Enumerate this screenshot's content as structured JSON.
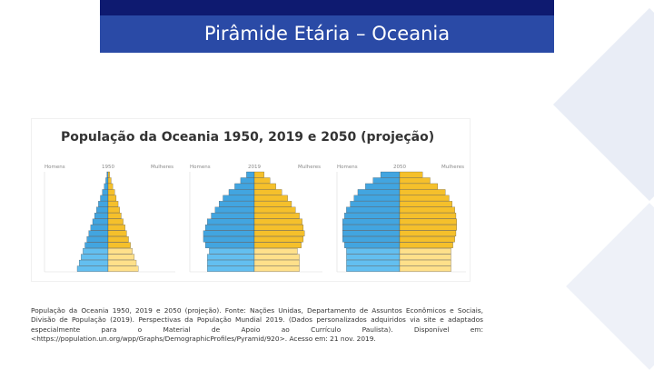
{
  "slide": {
    "title": "Pirâmide Etária – Oceania",
    "caption": "População da Oceania 1950, 2019 e 2050 (projeção). Fonte: Nações Unidas, Departamento de Assuntos Econômicos e Sociais, Divisão de População (2019). Perspectivas da População Mundial 2019. (Dados personalizados adquiridos via site e adaptados especialmente para o Material de Apoio ao Currículo Paulista). Disponível em: <https://population.un.org/wpp/Graphs/DemographicProfiles/Pyramid/920>. Acesso em: 21 nov. 2019.",
    "colors": {
      "accent": "#2a4aa6",
      "accent_dark": "#0e1a70",
      "men": "#42a5e0",
      "women": "#f5c02b"
    }
  },
  "figure": {
    "title": "População da Oceania 1950, 2019 e 2050 (projeção)"
  },
  "chart_data": [
    {
      "type": "bar",
      "orientation": "horizontal-pyramid",
      "year_label": "1950",
      "left_label": "Homens",
      "right_label": "Mulheres",
      "series": [
        {
          "name": "Homens",
          "values": [
            8,
            7.5,
            7,
            6.5,
            6,
            5.5,
            5,
            4.5,
            4,
            3.5,
            3,
            2.5,
            2,
            1.5,
            1,
            0.6,
            0.3
          ]
        },
        {
          "name": "Mulheres",
          "values": [
            7.8,
            7.3,
            6.8,
            6.3,
            5.8,
            5.3,
            4.8,
            4.4,
            3.9,
            3.4,
            3,
            2.6,
            2.1,
            1.7,
            1.2,
            0.8,
            0.4
          ]
        }
      ]
    },
    {
      "type": "bar",
      "orientation": "horizontal-pyramid",
      "year_label": "2019",
      "left_label": "Homens",
      "right_label": "Mulheres",
      "series": [
        {
          "name": "Homens",
          "values": [
            12,
            12,
            12,
            11.5,
            12.5,
            13,
            13,
            12.5,
            12,
            11,
            10,
            9,
            8,
            6.5,
            5,
            3.5,
            2
          ]
        },
        {
          "name": "Mulheres",
          "values": [
            11.5,
            11.5,
            11.5,
            11,
            12,
            12.5,
            12.8,
            12.5,
            12.2,
            11.5,
            10.5,
            9.5,
            8.5,
            7,
            5.5,
            4,
            2.5
          ]
        }
      ]
    },
    {
      "type": "bar",
      "orientation": "horizontal-pyramid",
      "year_label": "2050",
      "left_label": "Homens",
      "right_label": "Mulheres",
      "series": [
        {
          "name": "Homens",
          "values": [
            14,
            14,
            14,
            14,
            14.5,
            15,
            15,
            15,
            15,
            14.5,
            14,
            13,
            12,
            11,
            9,
            7,
            5
          ]
        },
        {
          "name": "Mulheres",
          "values": [
            13.5,
            13.5,
            13.5,
            13.5,
            14,
            14.5,
            14.8,
            15,
            15,
            14.8,
            14.5,
            13.8,
            13,
            12,
            10,
            8,
            6
          ]
        }
      ]
    }
  ]
}
